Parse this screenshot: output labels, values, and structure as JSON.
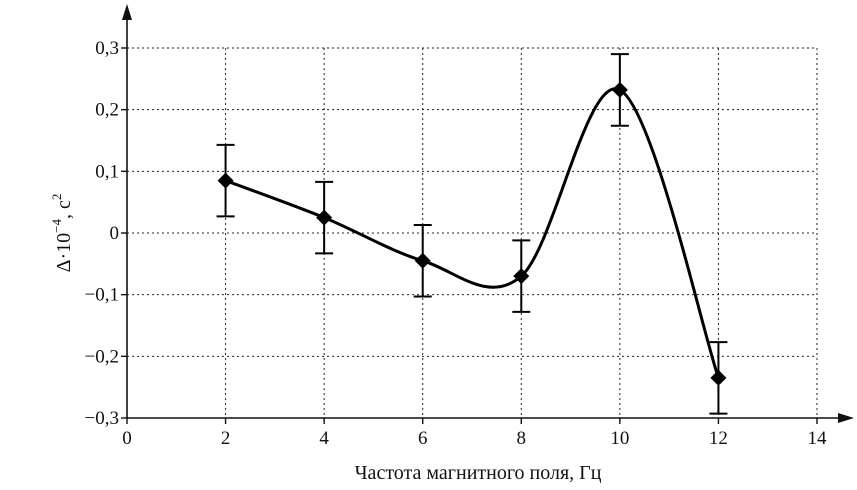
{
  "chart_data": {
    "type": "line",
    "title": "",
    "xlabel": "Частота магнитного поля, Гц",
    "ylabel_main": "Δ·10",
    "ylabel_exp": "−4",
    "ylabel_unit": ", с",
    "ylabel_unit_exp": "2",
    "xlim": [
      0,
      14
    ],
    "ylim": [
      -0.3,
      0.3
    ],
    "x_ticks": [
      0,
      2,
      4,
      6,
      8,
      10,
      12,
      14
    ],
    "x_tick_labels": [
      "0",
      "2",
      "4",
      "6",
      "8",
      "10",
      "12",
      "14"
    ],
    "y_ticks": [
      -0.3,
      -0.2,
      -0.1,
      0,
      0.1,
      0.2,
      0.3
    ],
    "y_tick_labels": [
      "−0,3",
      "−0,2",
      "−0,1",
      "0",
      "0,1",
      "0,2",
      "0,3"
    ],
    "grid": true,
    "series": [
      {
        "x": [
          2,
          4,
          6,
          8,
          10,
          12
        ],
        "y": [
          0.085,
          0.025,
          -0.045,
          -0.07,
          0.232,
          -0.235
        ],
        "err": [
          0.058,
          0.058,
          0.058,
          0.058,
          0.058,
          0.058
        ]
      }
    ],
    "smooth_curve": true,
    "marker": "diamond"
  }
}
